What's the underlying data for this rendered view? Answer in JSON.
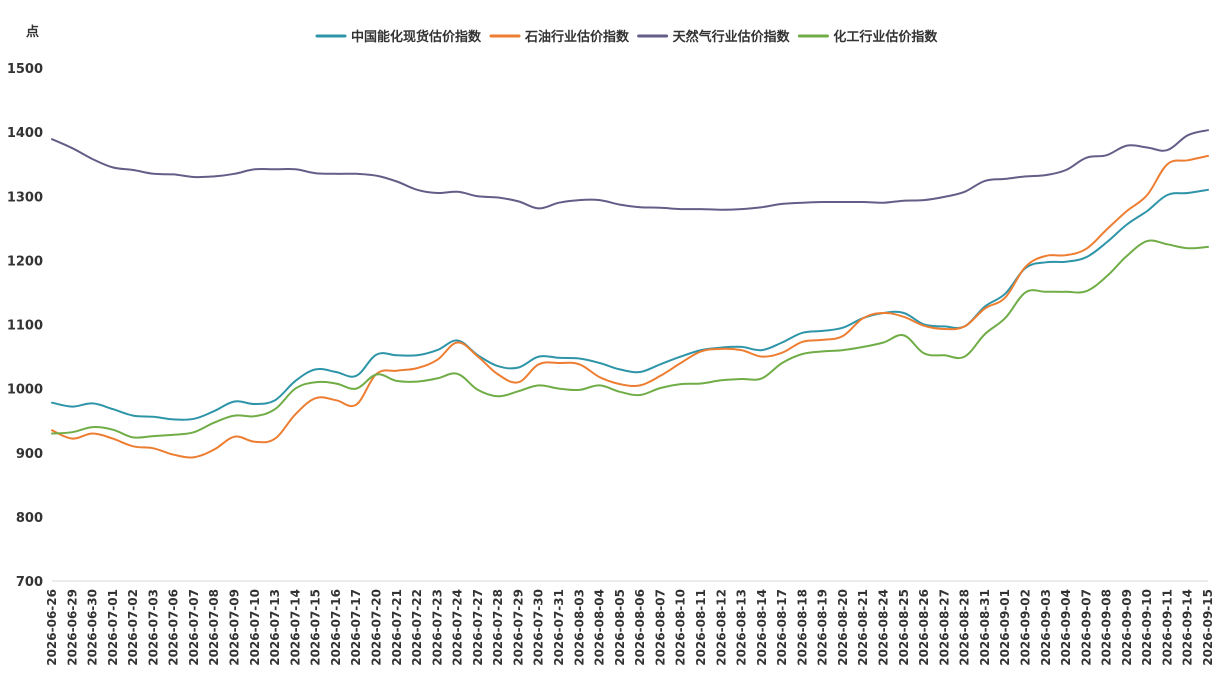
{
  "chart_data": {
    "type": "line",
    "title": "",
    "ylabel": "点",
    "xlabel": "",
    "ylim": [
      700,
      1500
    ],
    "yticks": [
      700,
      800,
      900,
      1000,
      1100,
      1200,
      1300,
      1400,
      1500
    ],
    "grid": false,
    "legend_position": "top-center",
    "x": [
      "2026-06-26",
      "2026-06-29",
      "2026-06-30",
      "2026-07-01",
      "2026-07-02",
      "2026-07-03",
      "2026-07-06",
      "2026-07-07",
      "2026-07-08",
      "2026-07-09",
      "2026-07-10",
      "2026-07-13",
      "2026-07-14",
      "2026-07-15",
      "2026-07-16",
      "2026-07-17",
      "2026-07-20",
      "2026-07-21",
      "2026-07-22",
      "2026-07-23",
      "2026-07-24",
      "2026-07-27",
      "2026-07-28",
      "2026-07-29",
      "2026-07-30",
      "2026-07-31",
      "2026-08-03",
      "2026-08-04",
      "2026-08-05",
      "2026-08-06",
      "2026-08-07",
      "2026-08-10",
      "2026-08-11",
      "2026-08-12",
      "2026-08-13",
      "2026-08-14",
      "2026-08-17",
      "2026-08-18",
      "2026-08-19",
      "2026-08-20",
      "2026-08-21",
      "2026-08-24",
      "2026-08-25",
      "2026-08-26",
      "2026-08-27",
      "2026-08-28",
      "2026-08-31",
      "2026-09-01",
      "2026-09-02",
      "2026-09-03",
      "2026-09-04",
      "2026-09-07",
      "2026-09-08",
      "2026-09-09",
      "2026-09-10",
      "2026-09-11",
      "2026-09-14",
      "2026-09-15"
    ],
    "series": [
      {
        "name": "中国能化现货估价指数",
        "color": "#2e95a8",
        "values": [
          978,
          972,
          977,
          968,
          958,
          956,
          952,
          953,
          965,
          980,
          976,
          982,
          1012,
          1030,
          1026,
          1020,
          1053,
          1052,
          1052,
          1060,
          1075,
          1052,
          1035,
          1033,
          1050,
          1048,
          1047,
          1040,
          1030,
          1026,
          1038,
          1050,
          1060,
          1064,
          1065,
          1060,
          1072,
          1087,
          1090,
          1095,
          1110,
          1118,
          1118,
          1100,
          1097,
          1097,
          1128,
          1148,
          1188,
          1197,
          1198,
          1205,
          1228,
          1256,
          1277,
          1302,
          1305,
          1310
        ]
      },
      {
        "name": "石油行业估价指数",
        "color": "#ed7d31",
        "values": [
          935,
          922,
          930,
          922,
          910,
          907,
          897,
          893,
          905,
          925,
          917,
          922,
          960,
          985,
          982,
          975,
          1023,
          1028,
          1032,
          1045,
          1072,
          1050,
          1022,
          1010,
          1038,
          1040,
          1038,
          1018,
          1007,
          1005,
          1020,
          1040,
          1058,
          1062,
          1060,
          1050,
          1056,
          1073,
          1076,
          1082,
          1110,
          1118,
          1112,
          1098,
          1093,
          1097,
          1125,
          1142,
          1190,
          1207,
          1208,
          1218,
          1248,
          1277,
          1302,
          1350,
          1356,
          1363
        ]
      },
      {
        "name": "天然气行业估价指数",
        "color": "#635e87",
        "values": [
          1389,
          1375,
          1358,
          1345,
          1341,
          1335,
          1334,
          1330,
          1331,
          1335,
          1342,
          1342,
          1342,
          1336,
          1335,
          1335,
          1332,
          1323,
          1310,
          1305,
          1307,
          1300,
          1298,
          1292,
          1281,
          1290,
          1294,
          1294,
          1287,
          1283,
          1282,
          1280,
          1280,
          1279,
          1280,
          1283,
          1288,
          1290,
          1291,
          1291,
          1291,
          1290,
          1293,
          1294,
          1299,
          1307,
          1324,
          1327,
          1331,
          1333,
          1341,
          1360,
          1364,
          1379,
          1376,
          1372,
          1395,
          1403
        ]
      },
      {
        "name": "化工行业估价指数",
        "color": "#70ad47",
        "values": [
          930,
          932,
          940,
          936,
          924,
          926,
          928,
          932,
          947,
          958,
          957,
          968,
          1000,
          1010,
          1008,
          1000,
          1022,
          1012,
          1011,
          1016,
          1023,
          998,
          988,
          996,
          1005,
          1000,
          998,
          1005,
          995,
          990,
          1001,
          1007,
          1008,
          1013,
          1015,
          1016,
          1040,
          1054,
          1058,
          1060,
          1065,
          1072,
          1083,
          1055,
          1052,
          1050,
          1085,
          1110,
          1150,
          1151,
          1151,
          1152,
          1175,
          1207,
          1230,
          1225,
          1219,
          1221
        ]
      }
    ]
  }
}
